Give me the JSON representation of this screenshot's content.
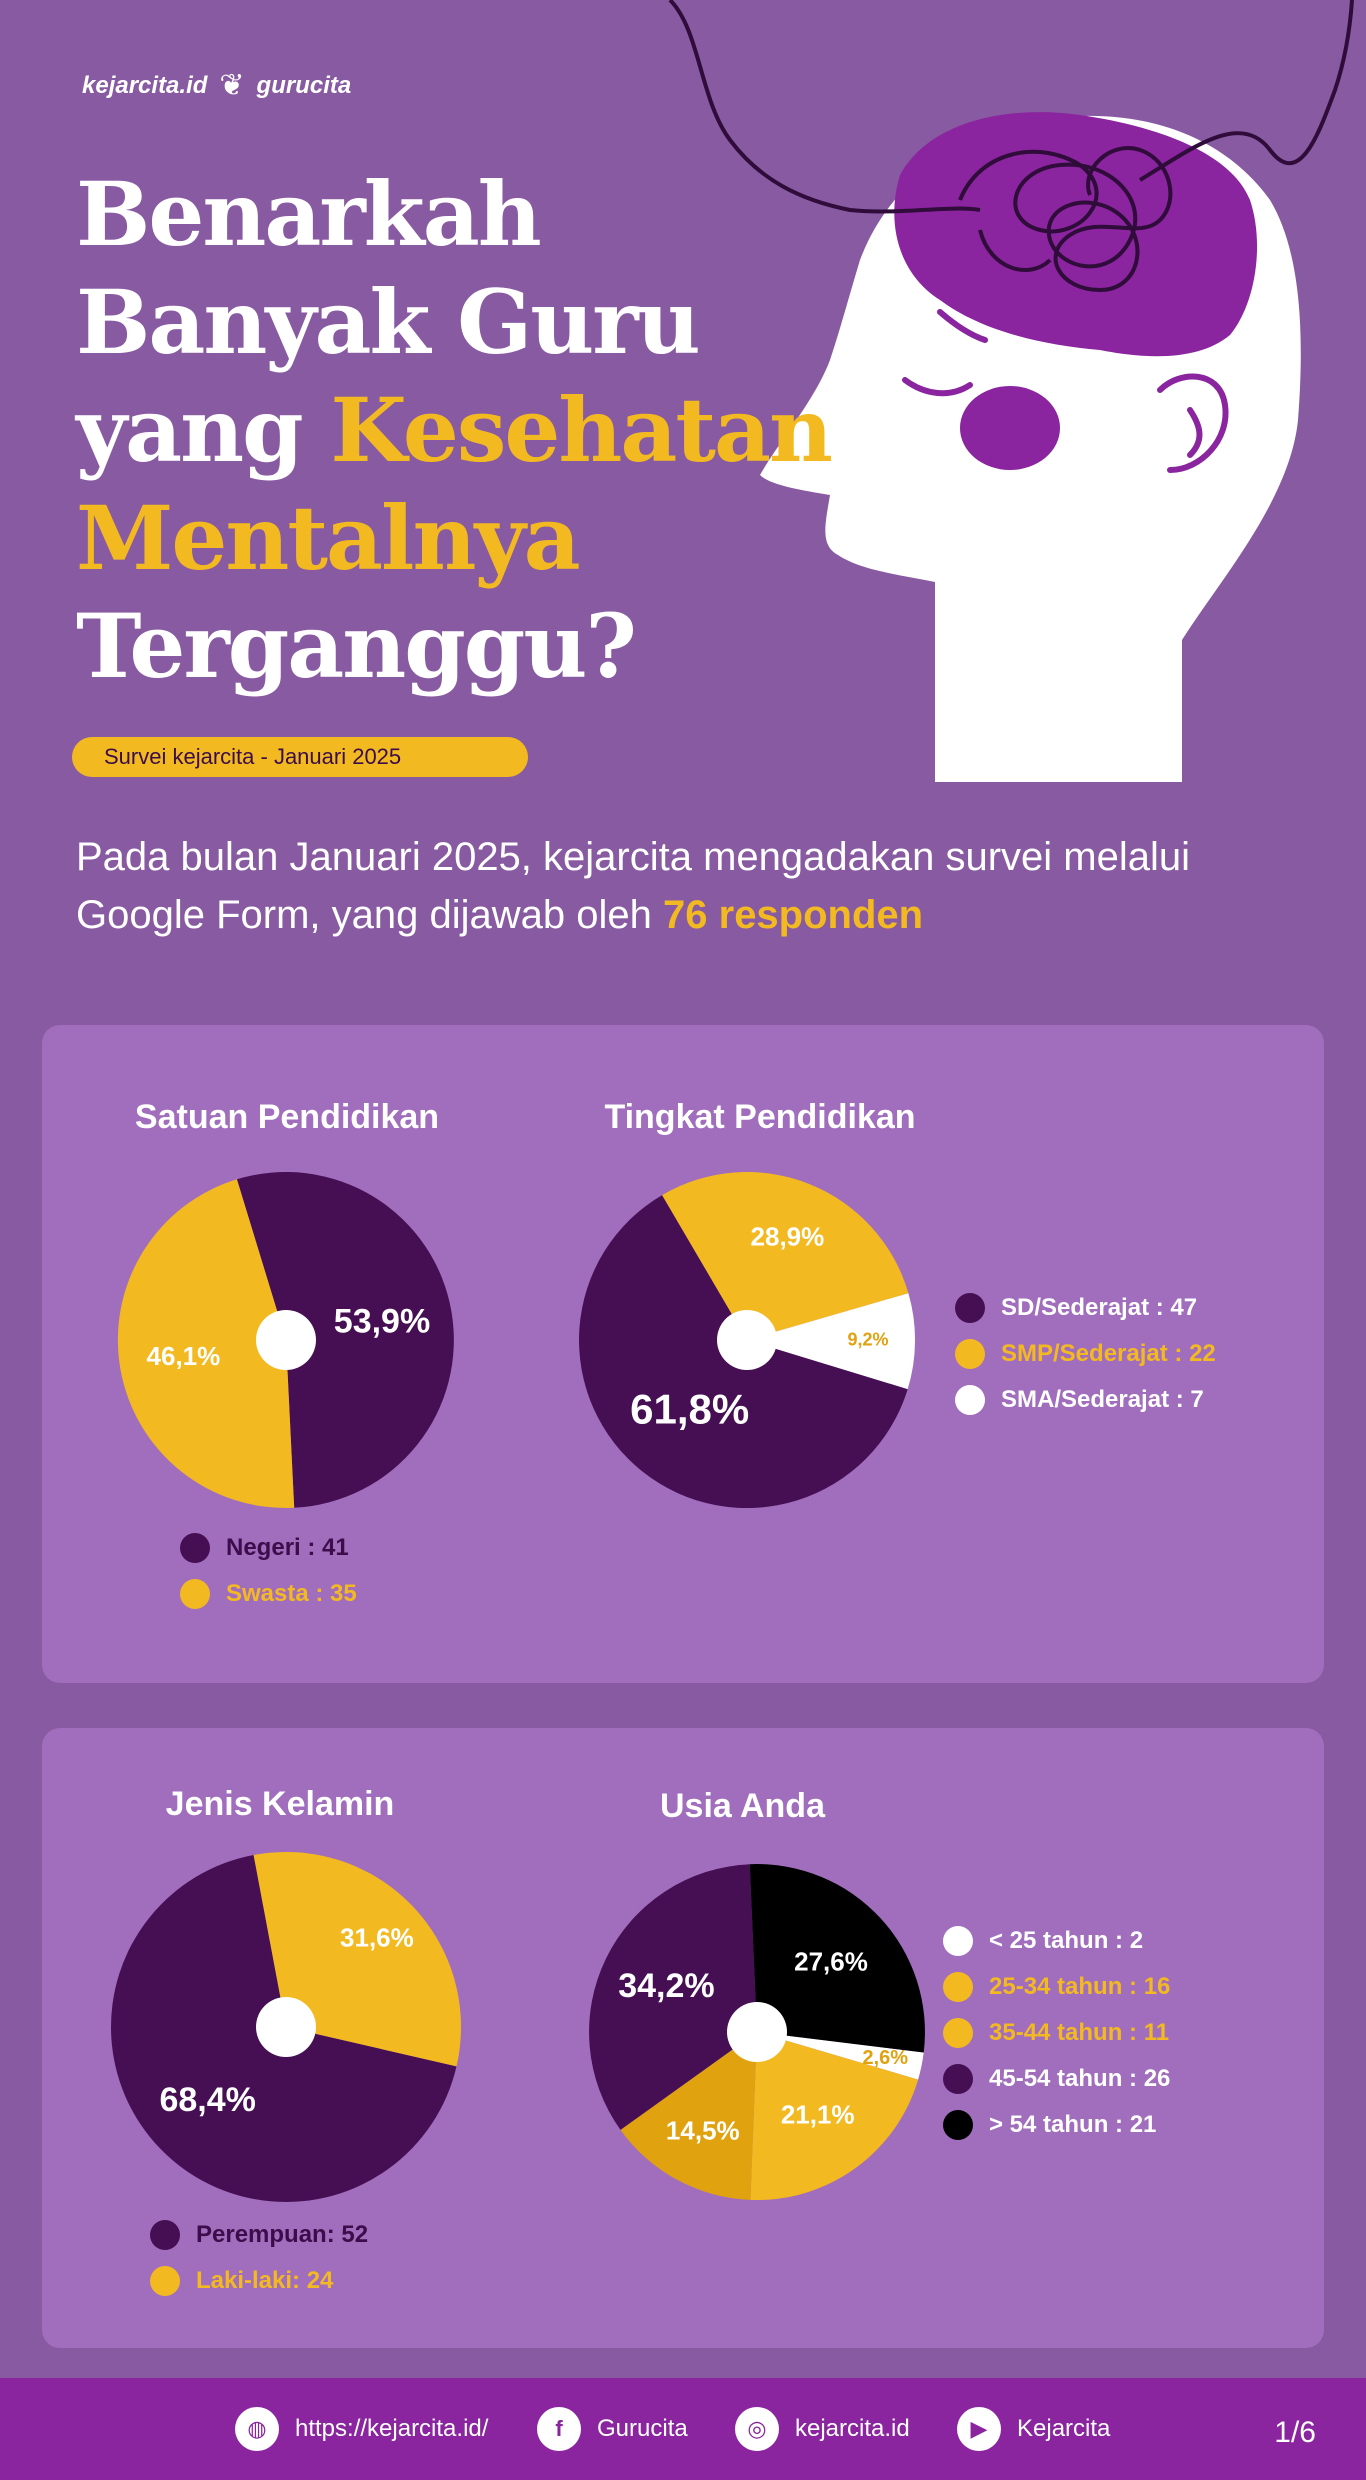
{
  "brand": {
    "logo_1": "kejarcita.id",
    "logo_2": "gurucita"
  },
  "title": {
    "line1": "Benarkah",
    "line2": "Banyak Guru",
    "line3_white": "yang",
    "line3_yellow": "Kesehatan",
    "line4_yellow": "Mentalnya",
    "line5": "Terganggu?"
  },
  "survey_badge": "Survei kejarcita - Januari 2025",
  "intro": {
    "text": "Pada bulan Januari 2025, kejarcita mengadakan survei melalui Google Form, yang dijawab oleh",
    "highlight": "76 responden"
  },
  "colors": {
    "dark_purple": "#460f53",
    "yellow": "#f3b921",
    "gold": "#e1a210",
    "white": "#ffffff",
    "black": "#000000",
    "background": "#885aa1",
    "panel": "#a16dbd"
  },
  "chart_data": [
    {
      "id": "satuan",
      "type": "pie",
      "title": "Satuan Pendidikan",
      "slices": [
        {
          "label": "Negeri",
          "value": 41,
          "percent": "53,9%",
          "color": "#460f53",
          "legend_text": "Negeri : 41"
        },
        {
          "label": "Swasta",
          "value": 35,
          "percent": "46,1%",
          "color": "#f3b921",
          "legend_text": "Swasta : 35"
        }
      ]
    },
    {
      "id": "tingkat",
      "type": "pie",
      "title": "Tingkat Pendidikan",
      "slices": [
        {
          "label": "SD/Sederajat",
          "value": 47,
          "percent": "61,8%",
          "color": "#460f53",
          "legend_text": "SD/Sederajat : 47"
        },
        {
          "label": "SMP/Sederajat",
          "value": 22,
          "percent": "28,9%",
          "color": "#f3b921",
          "legend_text": "SMP/Sederajat : 22"
        },
        {
          "label": "SMA/Sederajat",
          "value": 7,
          "percent": "9,2%",
          "color": "#ffffff",
          "legend_text": "SMA/Sederajat : 7"
        }
      ]
    },
    {
      "id": "kelamin",
      "type": "pie",
      "title": "Jenis Kelamin",
      "slices": [
        {
          "label": "Perempuan",
          "value": 52,
          "percent": "68,4%",
          "color": "#460f53",
          "legend_text": "Perempuan: 52"
        },
        {
          "label": "Laki-laki",
          "value": 24,
          "percent": "31,6%",
          "color": "#f3b921",
          "legend_text": "Laki-laki: 24"
        }
      ]
    },
    {
      "id": "usia",
      "type": "pie",
      "title": "Usia Anda",
      "slices": [
        {
          "label": "< 25 tahun",
          "value": 2,
          "percent": "2,6%",
          "color": "#ffffff",
          "legend_text": "< 25 tahun  : 2"
        },
        {
          "label": "25-34 tahun",
          "value": 16,
          "percent": "21,1%",
          "color": "#f3b921",
          "legend_text": "25-34 tahun : 16"
        },
        {
          "label": "35-44 tahun",
          "value": 11,
          "percent": "14,5%",
          "color": "#e1a210",
          "legend_text": "35-44 tahun : 11"
        },
        {
          "label": "45-54 tahun",
          "value": 26,
          "percent": "34,2%",
          "color": "#460f53",
          "legend_text": "45-54 tahun : 26"
        },
        {
          "label": "> 54 tahun",
          "value": 21,
          "percent": "27,6%",
          "color": "#000000",
          "legend_text": "> 54 tahun : 21"
        }
      ]
    }
  ],
  "footer": {
    "website": "https://kejarcita.id/",
    "facebook": "Gurucita",
    "instagram": "kejarcita.id",
    "youtube": "Kejarcita",
    "page": "1/6",
    "icons": [
      "globe-icon",
      "facebook-icon",
      "instagram-icon",
      "youtube-icon"
    ]
  }
}
